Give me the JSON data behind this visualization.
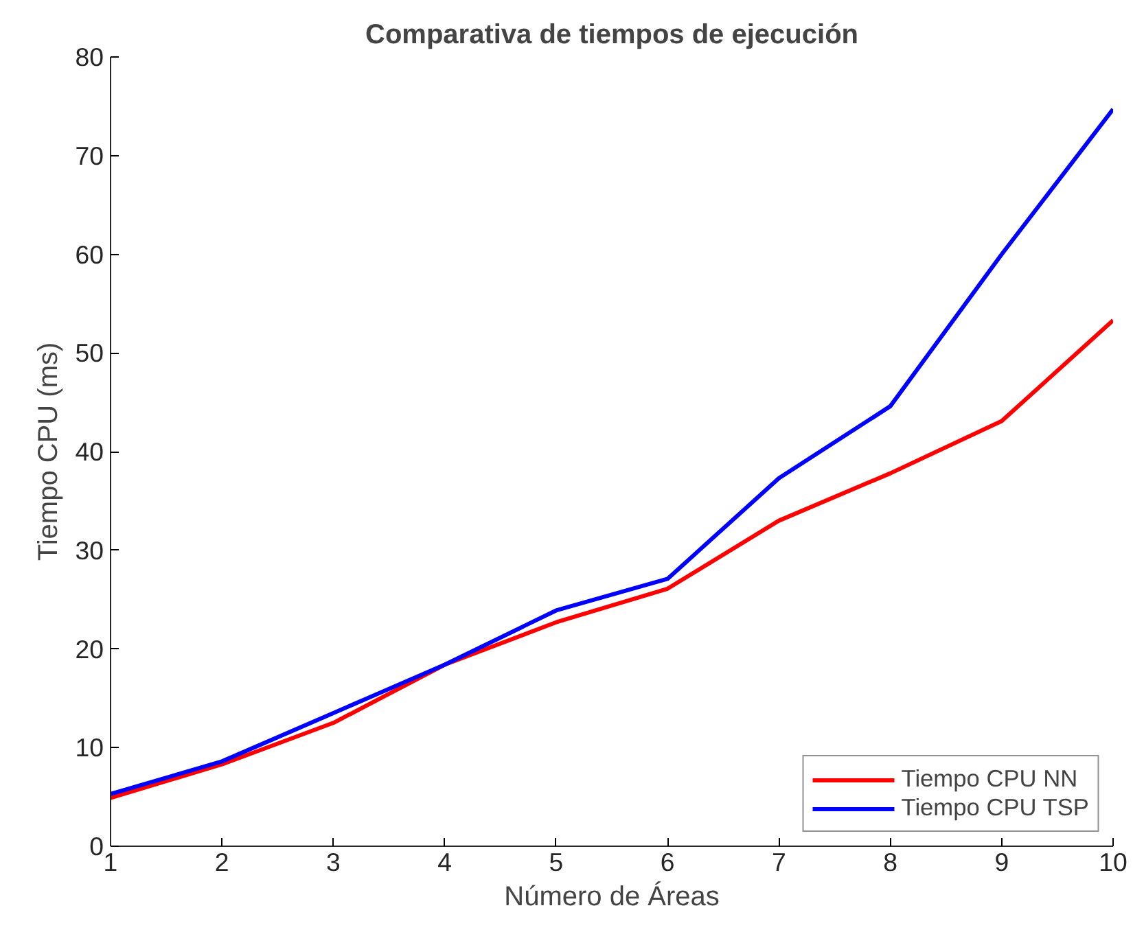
{
  "chart_data": {
    "type": "line",
    "title": "Comparativa de tiempos de ejecución",
    "xlabel": "Número de Áreas",
    "ylabel": "Tiempo CPU (ms)",
    "x": [
      1,
      2,
      3,
      4,
      5,
      6,
      7,
      8,
      9,
      10
    ],
    "series": [
      {
        "name": "Tiempo CPU NN",
        "color": "#ff0000",
        "values": [
          4.9,
          8.3,
          12.5,
          18.4,
          22.7,
          26.1,
          33.0,
          37.8,
          43.1,
          53.3
        ]
      },
      {
        "name": "Tiempo CPU TSP",
        "color": "#0000ff",
        "values": [
          5.3,
          8.6,
          13.5,
          18.4,
          23.9,
          27.1,
          37.3,
          44.6,
          60.0,
          74.7
        ]
      }
    ],
    "xlim": [
      1,
      10
    ],
    "xticks": [
      1,
      2,
      3,
      4,
      5,
      6,
      7,
      8,
      9,
      10
    ],
    "ylim": [
      0,
      80
    ],
    "yticks": [
      0,
      10,
      20,
      30,
      40,
      50,
      60,
      70,
      80
    ],
    "grid": false,
    "legend": "bottom right",
    "line_style": "solid",
    "marker": "none"
  }
}
